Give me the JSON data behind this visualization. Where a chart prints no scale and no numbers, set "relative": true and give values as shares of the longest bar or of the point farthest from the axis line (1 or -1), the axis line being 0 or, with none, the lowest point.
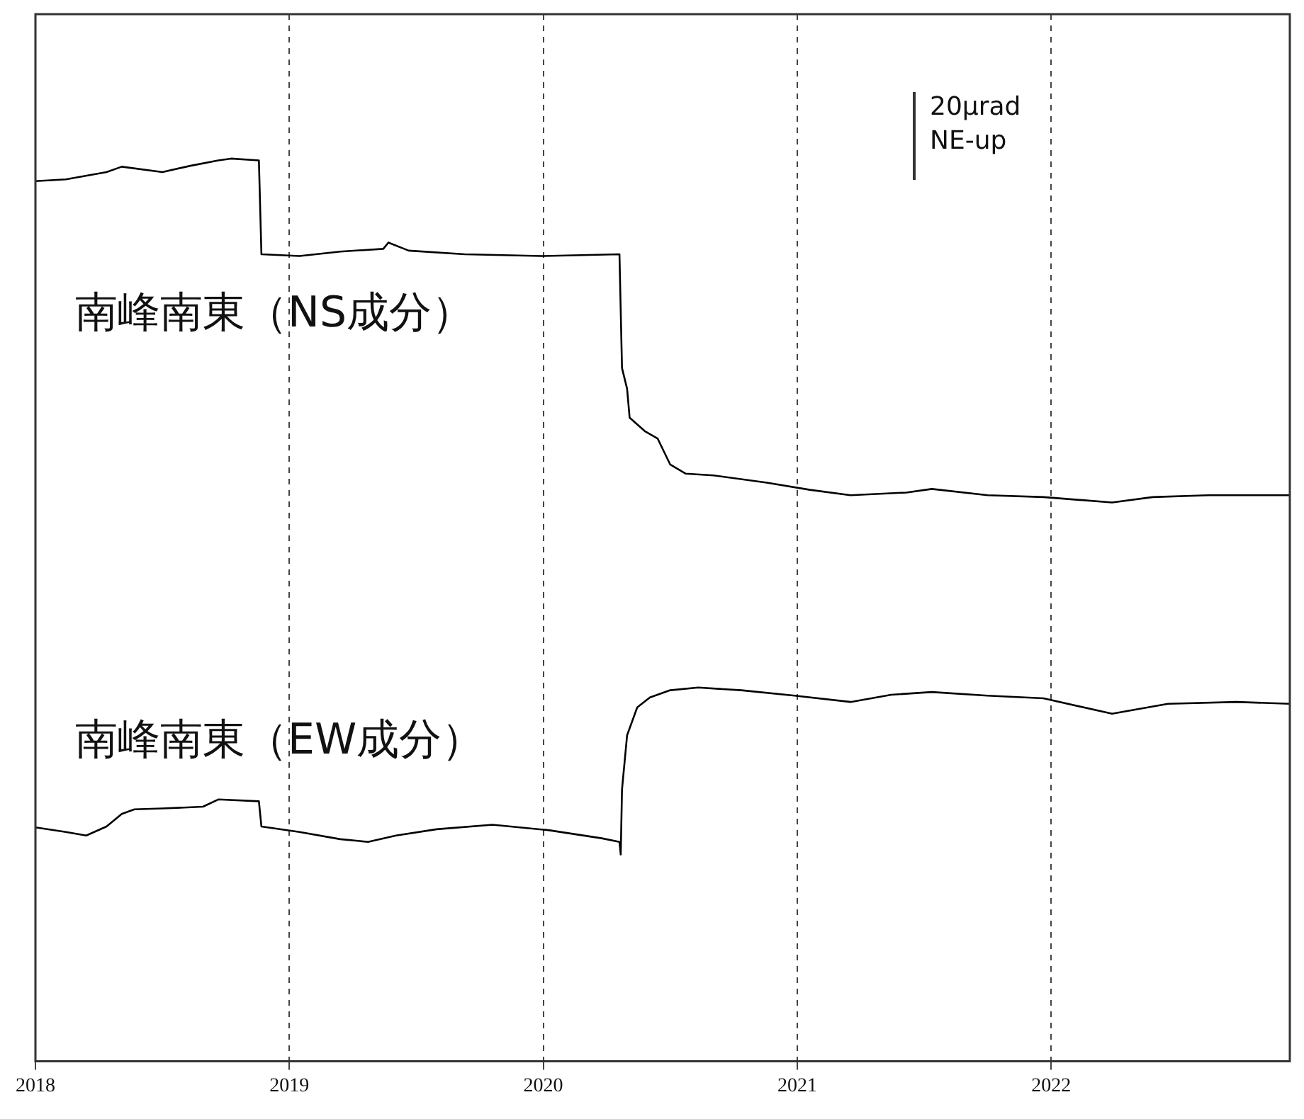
{
  "chart_data": {
    "type": "line",
    "relative": true,
    "xlim": [
      2018,
      2022.94
    ],
    "xticks": [
      2018,
      2019,
      2020,
      2021,
      2022
    ],
    "grid": "x",
    "legend": false,
    "marker": "none",
    "line_style": "solid",
    "annotations": [
      "20μrad",
      "NE-up"
    ],
    "series": [
      {
        "name": "南峰南東（NS成分）",
        "color": "#000000",
        "x": [
          2018.0,
          2018.12,
          2018.28,
          2018.34,
          2018.5,
          2018.61,
          2018.72,
          2018.77,
          2018.88,
          2018.89,
          2019.04,
          2019.2,
          2019.37,
          2019.39,
          2019.47,
          2019.69,
          2020.0,
          2020.3,
          2020.31,
          2020.33,
          2020.34,
          2020.4,
          2020.45,
          2020.5,
          2020.56,
          2020.67,
          2020.88,
          2021.05,
          2021.21,
          2021.43,
          2021.53,
          2021.75,
          2021.97,
          2022.24,
          2022.4,
          2022.62,
          2022.94
        ],
        "values": [
          0.975,
          0.977,
          0.985,
          0.991,
          0.985,
          0.992,
          0.998,
          1.0,
          0.998,
          0.894,
          0.892,
          0.897,
          0.9,
          0.907,
          0.898,
          0.894,
          0.892,
          0.894,
          0.768,
          0.745,
          0.713,
          0.698,
          0.69,
          0.661,
          0.651,
          0.649,
          0.641,
          0.633,
          0.627,
          0.63,
          0.634,
          0.627,
          0.625,
          0.619,
          0.625,
          0.627,
          0.627
        ]
      },
      {
        "name": "南峰南東（EW成分）",
        "color": "#000000",
        "x": [
          2018.0,
          2018.12,
          2018.2,
          2018.28,
          2018.34,
          2018.39,
          2018.5,
          2018.66,
          2018.72,
          2018.88,
          2018.89,
          2019.04,
          2019.2,
          2019.31,
          2019.42,
          2019.58,
          2019.8,
          2020.02,
          2020.23,
          2020.3,
          2020.305,
          2020.31,
          2020.33,
          2020.37,
          2020.42,
          2020.5,
          2020.61,
          2020.78,
          2020.99,
          2021.21,
          2021.37,
          2021.53,
          2021.75,
          2021.97,
          2022.24,
          2022.46,
          2022.73,
          2022.94
        ],
        "values": [
          0.259,
          0.254,
          0.25,
          0.26,
          0.274,
          0.279,
          0.28,
          0.282,
          0.29,
          0.288,
          0.26,
          0.254,
          0.246,
          0.243,
          0.25,
          0.257,
          0.262,
          0.256,
          0.247,
          0.243,
          0.229,
          0.301,
          0.361,
          0.392,
          0.403,
          0.411,
          0.414,
          0.411,
          0.405,
          0.398,
          0.406,
          0.409,
          0.405,
          0.402,
          0.385,
          0.396,
          0.398,
          0.396
        ]
      }
    ]
  }
}
